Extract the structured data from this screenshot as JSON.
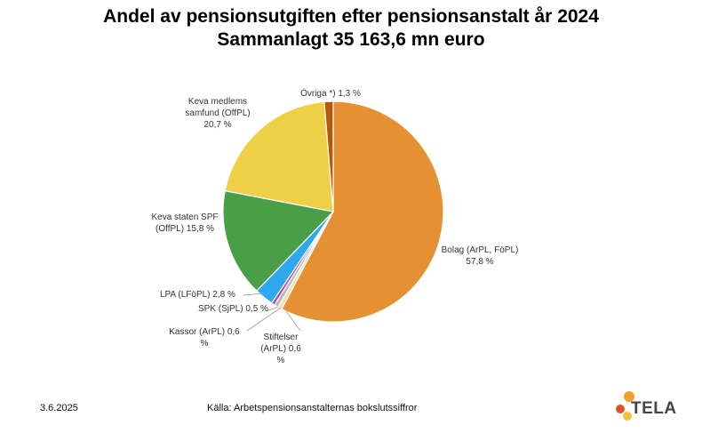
{
  "title_line1": "Andel av pensionsutgiften efter pensionsanstalt år 2024",
  "title_line2": "Sammanlagt 35 163,6 mn euro",
  "footer": {
    "date": "3.6.2025",
    "source": "Källa: Arbetspensionsanstalternas bokslutssiffror",
    "logo_text": "TELA"
  },
  "chart_data": {
    "type": "pie",
    "unit": "%",
    "start_angle_deg": 0,
    "slices": [
      {
        "label": "Bolag (ArPL, FöPL)",
        "label_lines": [
          "Bolag (ArPL, FöPL)",
          "57,8 %"
        ],
        "value": 57.8,
        "color": "#E59133"
      },
      {
        "label": "Stiftelser (ArPL)",
        "label_lines": [
          "Stiftelser",
          "(ArPL) 0,6",
          "%"
        ],
        "value": 0.6,
        "color": "#F2DEB7"
      },
      {
        "label": "Kassor (ArPL)",
        "label_lines": [
          "Kassor (ArPL) 0,6",
          "%"
        ],
        "value": 0.6,
        "color": "#B8B8B8"
      },
      {
        "label": "SPK (SjPL)",
        "label_lines": [
          "SPK (SjPL) 0,5 %"
        ],
        "value": 0.5,
        "color": "#A64FB8"
      },
      {
        "label": "LPA (LFöPL)",
        "label_lines": [
          "LPA (LFöPL) 2,8 %"
        ],
        "value": 2.8,
        "color": "#2EA8F0"
      },
      {
        "label": "Keva staten SPF (OffPL)",
        "label_lines": [
          "Keva staten SPF",
          "(OffPL) 15,8 %"
        ],
        "value": 15.8,
        "color": "#4A9E47"
      },
      {
        "label": "Keva medlems samfund (OffPL)",
        "label_lines": [
          "Keva medlems",
          "samfund (OffPL)",
          "20,7 %"
        ],
        "value": 20.7,
        "color": "#EFCF45"
      },
      {
        "label": "Övriga *)",
        "label_lines": [
          "Övriga *) 1,3 %"
        ],
        "value": 1.3,
        "color": "#B55A0A"
      }
    ]
  }
}
